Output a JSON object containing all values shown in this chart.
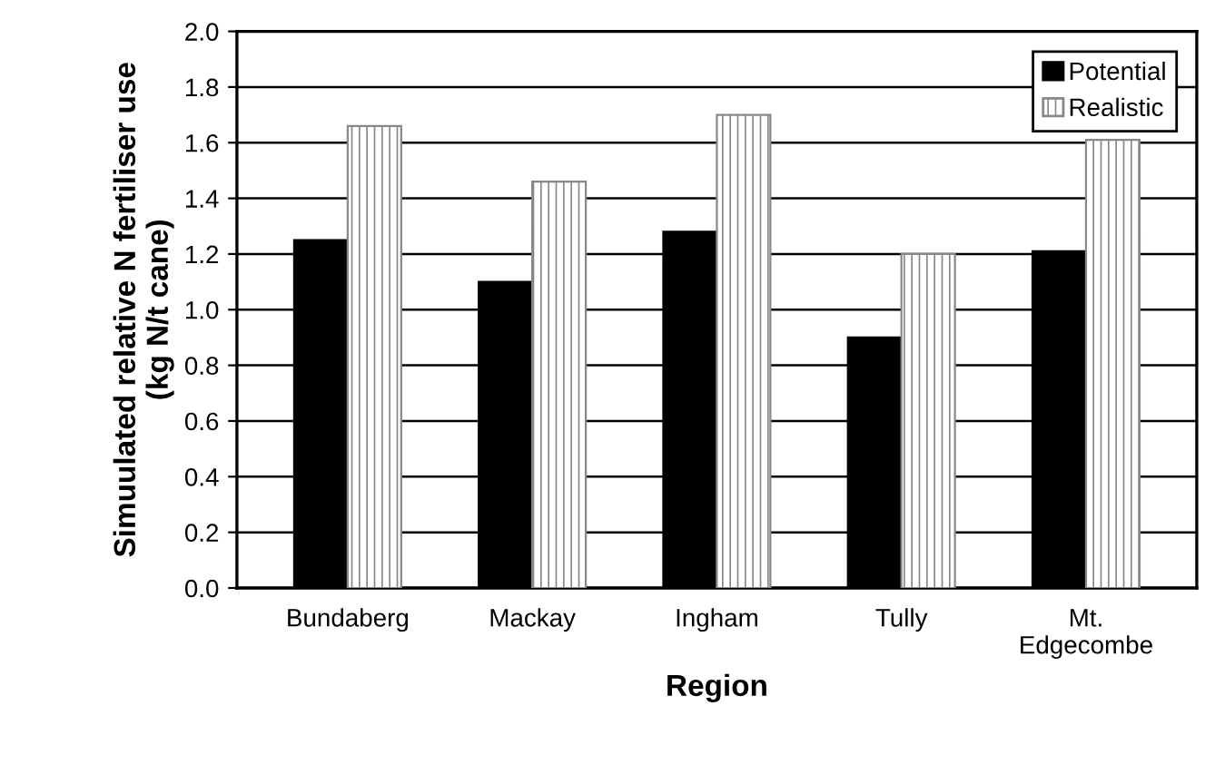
{
  "chart_data": {
    "type": "bar",
    "xlabel": "Region",
    "ylabel": "Simuulated relative N fertiliser use\n(kg N/t cane)",
    "categories": [
      "Bundaberg",
      "Mackay",
      "Ingham",
      "Tully",
      "Mt.\nEdgecombe"
    ],
    "series": [
      {
        "name": "Potential",
        "color": "#000000",
        "values": [
          1.25,
          1.1,
          1.28,
          0.9,
          1.21
        ]
      },
      {
        "name": "Realistic",
        "color": "#888888",
        "values": [
          1.66,
          1.46,
          1.7,
          1.2,
          1.61
        ]
      }
    ],
    "ylim": [
      0,
      2.0
    ],
    "yticks": [
      {
        "value": 0,
        "label": "0.0"
      },
      {
        "value": 0.2,
        "label": "0.2"
      },
      {
        "value": 0.4,
        "label": "0.4"
      },
      {
        "value": 0.6,
        "label": "0.6"
      },
      {
        "value": 0.8,
        "label": "0.8"
      },
      {
        "value": 1.0,
        "label": "1.0"
      },
      {
        "value": 1.2,
        "label": "1.2"
      },
      {
        "value": 1.4,
        "label": "1.4"
      },
      {
        "value": 1.6,
        "label": "1.6"
      },
      {
        "value": 1.8,
        "label": "1.8"
      },
      {
        "value": 2.0,
        "label": "2.0"
      }
    ],
    "grid": "y",
    "legend": "top right"
  }
}
